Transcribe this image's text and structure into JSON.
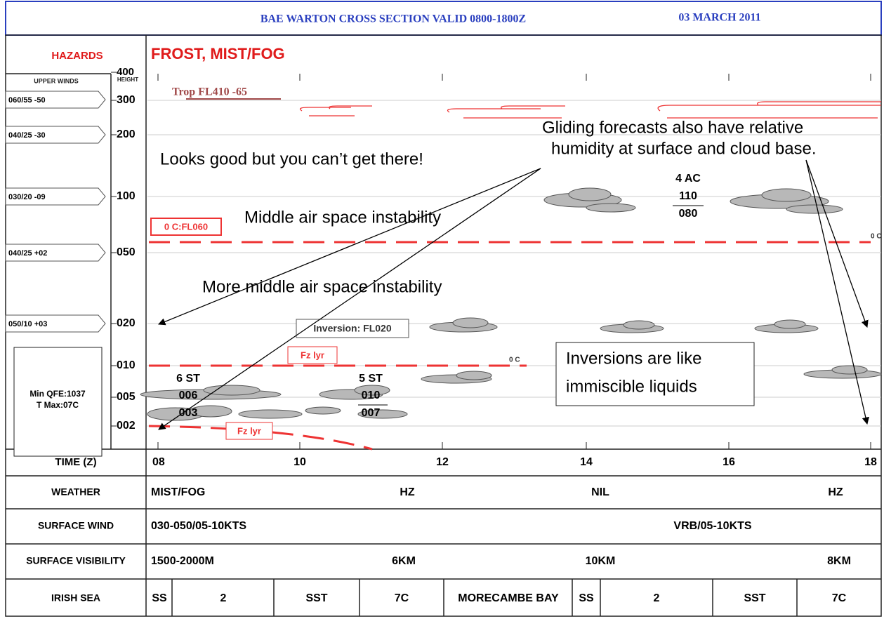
{
  "header": {
    "title": "BAE WARTON CROSS SECTION VALID 0800-1800Z",
    "date": "03 MARCH 2011"
  },
  "hazards": {
    "label": "HAZARDS",
    "text": "FROST, MIST/FOG"
  },
  "height_axis": {
    "label": "HEIGHT",
    "ticks": [
      "400",
      "300",
      "200",
      "100",
      "050",
      "020",
      "010",
      "005",
      "002"
    ]
  },
  "upper_winds": {
    "label": "UPPER WINDS",
    "items": [
      "060/55 -50",
      "040/25 -30",
      "030/20 -09",
      "040/25 +02",
      "050/10 +03"
    ]
  },
  "surface": {
    "lines": [
      "Min QFE:1037",
      "T Max:07C"
    ]
  },
  "time_axis": {
    "label": "TIME (Z)",
    "ticks": [
      "08",
      "10",
      "12",
      "14",
      "16",
      "18"
    ]
  },
  "chart_labels": {
    "trop": "Trop FL410 -65",
    "freezing_level": "0 C:FL060",
    "inversion": "Inversion: FL020",
    "fz_lyr": [
      "Fz lyr",
      "Fz lyr"
    ],
    "zero_c": [
      "0 C",
      "0 C"
    ]
  },
  "clouds": [
    {
      "type": "6 ST",
      "top": "006",
      "base": "003"
    },
    {
      "type": "5 ST",
      "top": "010",
      "base": "007"
    },
    {
      "type": "4 AC",
      "top": "110",
      "base": "080"
    }
  ],
  "annotations": {
    "looks_good": "Looks good but you can’t get there!",
    "middle": "Middle air space instability",
    "more_middle": "More middle air space instability",
    "gliding": [
      "Gliding forecasts also have relative",
      "humidity at surface and cloud base."
    ],
    "inversions": [
      "Inversions are like",
      "immiscible liquids"
    ]
  },
  "table": {
    "rows": [
      [
        "WEATHER",
        "MIST/FOG",
        "HZ",
        "NIL",
        "HZ"
      ],
      [
        "SURFACE WIND",
        "030-050/05-10KTS",
        "VRB/05-10KTS"
      ],
      [
        "SURFACE VISIBILITY",
        "1500-2000M",
        "6KM",
        "10KM",
        "8KM"
      ],
      [
        "IRISH SEA",
        "SS",
        "2",
        "SST",
        "7C",
        "MORECAMBE BAY",
        "SS",
        "2",
        "SST",
        "7C"
      ]
    ]
  }
}
